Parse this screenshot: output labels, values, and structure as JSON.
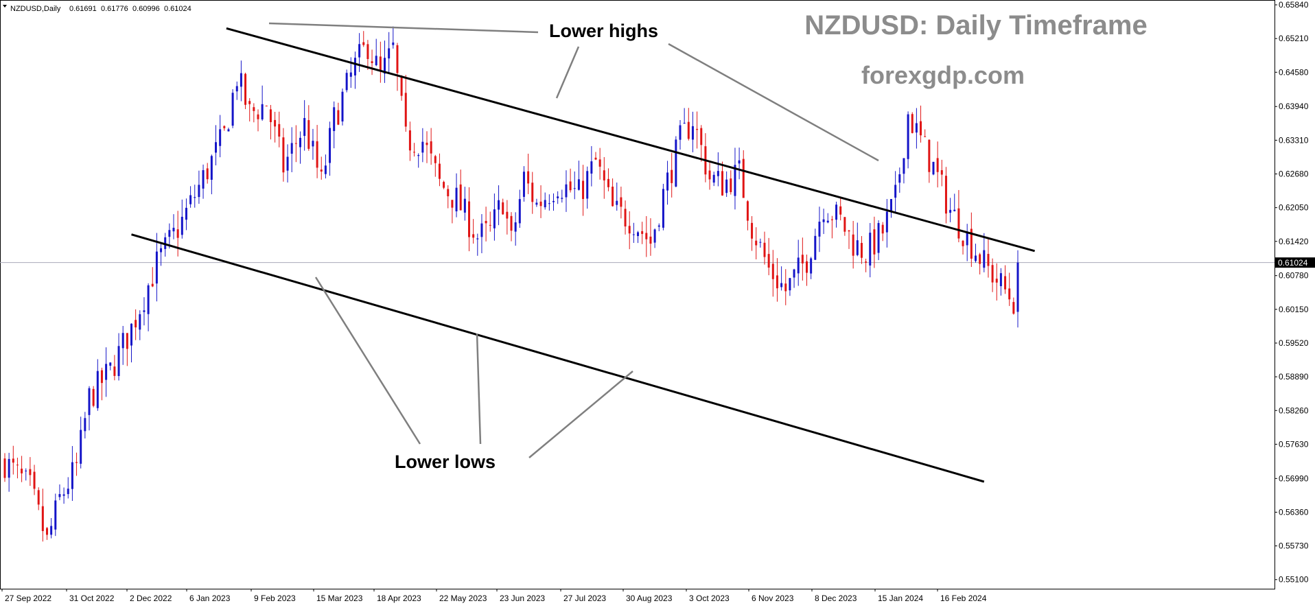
{
  "chart_data": {
    "type": "candlestick",
    "symbol_info": "NZDUSD,Daily",
    "ohlc_header": [
      "0.61691",
      "0.61776",
      "0.60996",
      "0.61024"
    ],
    "title": "NZDUSD: Daily Timeframe",
    "subtitle": "forexgdp.com",
    "current_price": "0.61024",
    "ylim": [
      0.5493,
      0.6593
    ],
    "y_ticks": [
      "0.65840",
      "0.65210",
      "0.64580",
      "0.63940",
      "0.63310",
      "0.62680",
      "0.62050",
      "0.61420",
      "0.60780",
      "0.60150",
      "0.59520",
      "0.58890",
      "0.58260",
      "0.57630",
      "0.56990",
      "0.56360",
      "0.55730",
      "0.55100"
    ],
    "x_ticks": [
      "27 Sep 2022",
      "31 Oct 2022",
      "2 Dec 2022",
      "6 Jan 2023",
      "9 Feb 2023",
      "15 Mar 2023",
      "18 Apr 2023",
      "22 May 2023",
      "23 Jun 2023",
      "27 Jul 2023",
      "30 Aug 2023",
      "3 Oct 2023",
      "6 Nov 2023",
      "8 Dec 2023",
      "15 Jan 2024",
      "16 Feb 2024"
    ],
    "bar_count": 260,
    "close_anchors": [
      [
        0,
        0.573
      ],
      [
        6,
        0.568
      ],
      [
        10,
        0.558
      ],
      [
        13,
        0.566
      ],
      [
        17,
        0.572
      ],
      [
        20,
        0.585
      ],
      [
        25,
        0.59
      ],
      [
        30,
        0.598
      ],
      [
        36,
        0.61
      ],
      [
        42,
        0.618
      ],
      [
        47,
        0.626
      ],
      [
        52,
        0.634
      ],
      [
        55,
        0.645
      ],
      [
        58,
        0.638
      ],
      [
        62,
        0.64
      ],
      [
        66,
        0.628
      ],
      [
        71,
        0.636
      ],
      [
        75,
        0.625
      ],
      [
        78,
        0.637
      ],
      [
        83,
        0.647
      ],
      [
        86,
        0.651
      ],
      [
        89,
        0.645
      ],
      [
        92,
        0.65
      ],
      [
        95,
        0.633
      ],
      [
        99,
        0.633
      ],
      [
        103,
        0.625
      ],
      [
        107,
        0.622
      ],
      [
        112,
        0.615
      ],
      [
        115,
        0.616
      ],
      [
        118,
        0.622
      ],
      [
        120,
        0.614
      ],
      [
        123,
        0.626
      ],
      [
        126,
        0.621
      ],
      [
        131,
        0.625
      ],
      [
        136,
        0.623
      ],
      [
        140,
        0.629
      ],
      [
        144,
        0.62
      ],
      [
        149,
        0.618
      ],
      [
        153,
        0.614
      ],
      [
        156,
        0.623
      ],
      [
        160,
        0.633
      ],
      [
        163,
        0.637
      ],
      [
        167,
        0.626
      ],
      [
        170,
        0.625
      ],
      [
        174,
        0.627
      ],
      [
        177,
        0.617
      ],
      [
        181,
        0.609
      ],
      [
        185,
        0.605
      ],
      [
        190,
        0.611
      ],
      [
        194,
        0.621
      ],
      [
        198,
        0.618
      ],
      [
        201,
        0.614
      ],
      [
        204,
        0.612
      ],
      [
        208,
        0.616
      ],
      [
        211,
        0.622
      ],
      [
        214,
        0.638
      ],
      [
        217,
        0.633
      ],
      [
        220,
        0.628
      ],
      [
        224,
        0.62
      ],
      [
        228,
        0.615
      ],
      [
        232,
        0.61
      ],
      [
        236,
        0.606
      ],
      [
        240,
        0.602
      ]
    ],
    "trendlines": [
      {
        "name": "upper",
        "from": [
          52.5,
          0.654
        ],
        "to": [
          244,
          0.6124
        ]
      },
      {
        "name": "lower",
        "from": [
          30,
          0.6155
        ],
        "to": [
          232,
          0.5693
        ]
      }
    ],
    "annotations": [
      {
        "text": "Lower highs"
      },
      {
        "text": "Lower lows"
      }
    ],
    "colors": {
      "bull": "#1414c8",
      "bear": "#e01414",
      "trendline": "#000000",
      "pointer": "#7f7f7f",
      "price_line": "#a9a9b8",
      "title": "#8c8c8c"
    },
    "grid": false
  }
}
